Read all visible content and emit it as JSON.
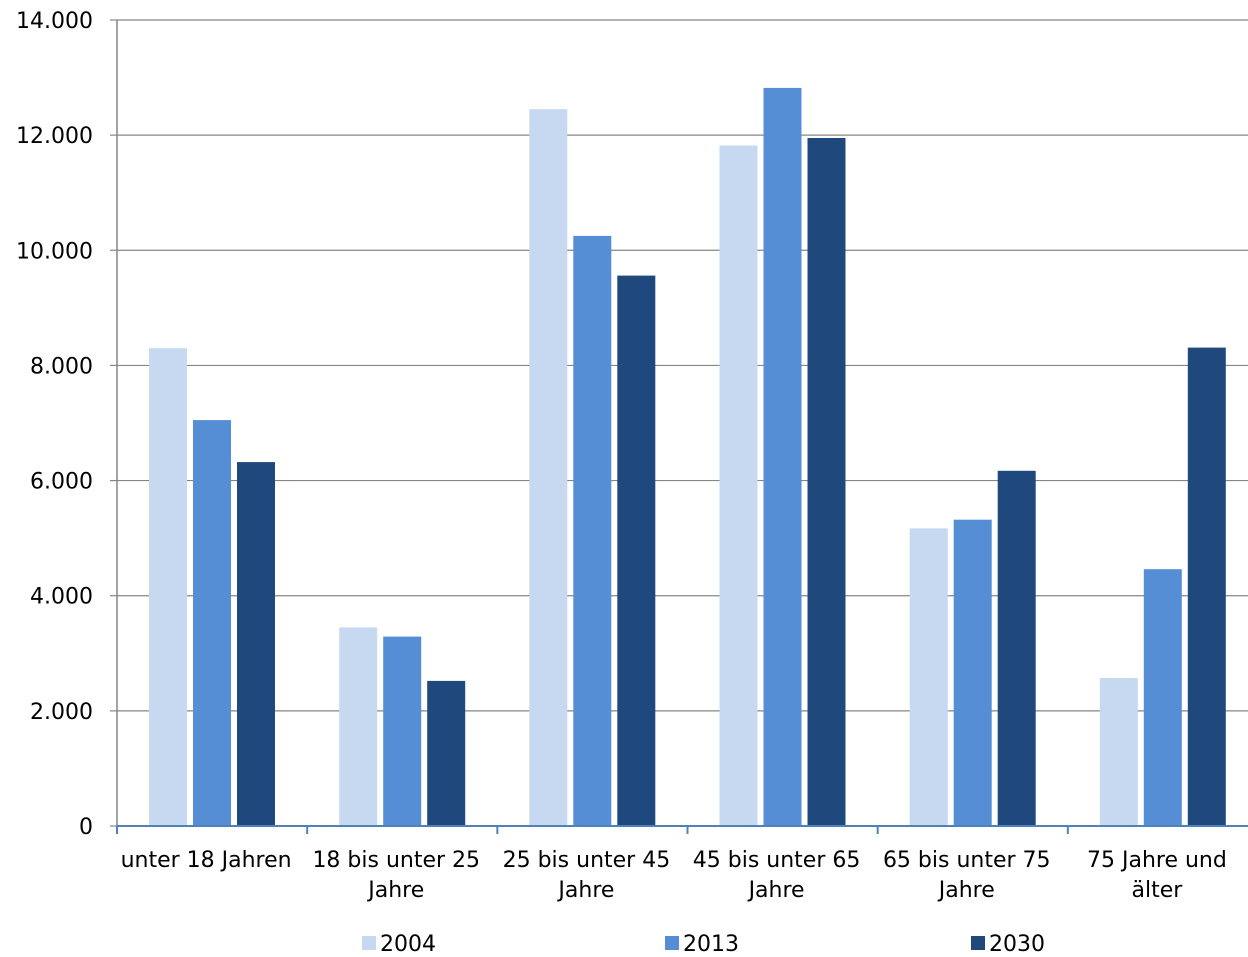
{
  "chart_data": {
    "type": "bar",
    "title": "",
    "xlabel": "",
    "ylabel": "",
    "ylim": [
      0,
      14000
    ],
    "y_ticks": [
      0,
      2000,
      4000,
      6000,
      8000,
      10000,
      12000,
      14000
    ],
    "y_tick_labels": [
      "0",
      "2.000",
      "4.000",
      "6.000",
      "8.000",
      "10.000",
      "12.000",
      "14.000"
    ],
    "grid": true,
    "legend_position": "bottom",
    "categories": [
      [
        "unter 18 Jahren"
      ],
      [
        "18 bis unter 25",
        "Jahre"
      ],
      [
        "25 bis unter 45",
        "Jahre"
      ],
      [
        "45 bis unter 65",
        "Jahre"
      ],
      [
        "65 bis unter 75",
        "Jahre"
      ],
      [
        "75 Jahre und",
        "älter"
      ]
    ],
    "series": [
      {
        "name": "2004",
        "color": "#c6d9f1",
        "values": [
          8300,
          3450,
          12450,
          11820,
          5170,
          2570
        ]
      },
      {
        "name": "2013",
        "color": "#558ed5",
        "values": [
          7050,
          3290,
          10250,
          12820,
          5320,
          4460
        ]
      },
      {
        "name": "2030",
        "color": "#1f497d",
        "values": [
          6320,
          2520,
          9560,
          11950,
          6170,
          8310
        ]
      }
    ]
  }
}
